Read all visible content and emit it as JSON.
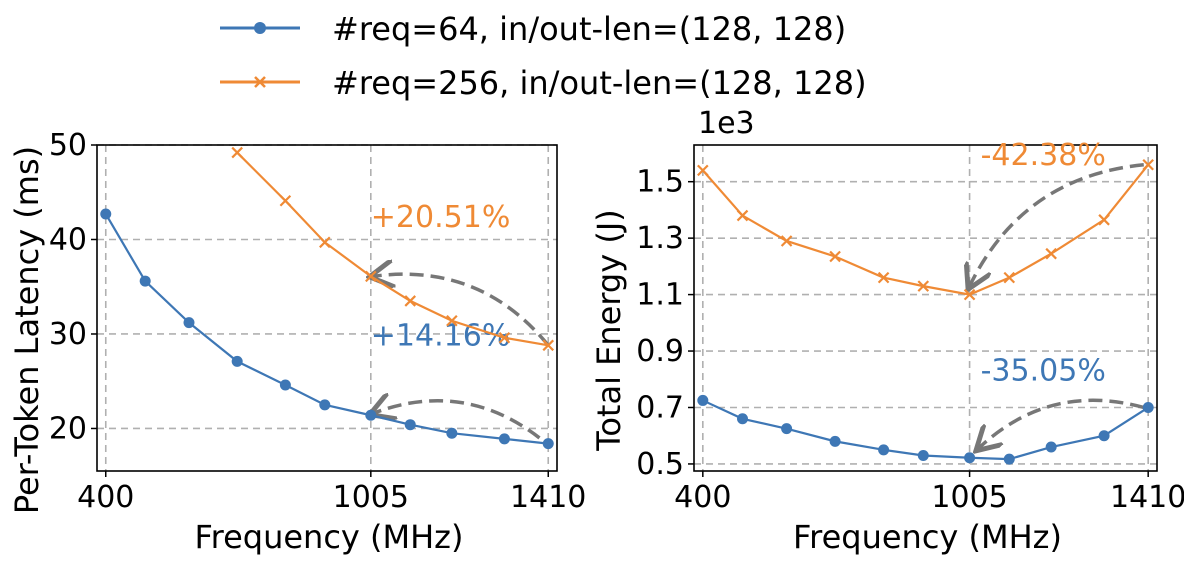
{
  "legend": {
    "items": [
      {
        "label": "#req=64, in/out-len=(128, 128)",
        "color": "#3e77b5",
        "marker": "circle"
      },
      {
        "label": "#req=256, in/out-len=(128, 128)",
        "color": "#ef8a35",
        "marker": "x"
      }
    ]
  },
  "chart_data": [
    {
      "type": "line",
      "xlabel": "Frequency (MHz)",
      "ylabel": "Per-Token Latency (ms)",
      "xlim": [
        380,
        1430
      ],
      "ylim": [
        15.5,
        50
      ],
      "xticks": [
        400,
        1005,
        1410
      ],
      "yticks": [
        20,
        30,
        40,
        50
      ],
      "grid": true,
      "series": [
        {
          "name": "#req=64, in/out-len=(128, 128)",
          "color": "#3e77b5",
          "marker": "circle",
          "x": [
            400,
            490,
            590,
            700,
            810,
            900,
            1005,
            1095,
            1190,
            1310,
            1410
          ],
          "y": [
            42.7,
            35.6,
            31.2,
            27.1,
            24.6,
            22.5,
            21.4,
            20.4,
            19.5,
            18.9,
            18.4
          ]
        },
        {
          "name": "#req=256, in/out-len=(128, 128)",
          "color": "#ef8a35",
          "marker": "x",
          "x": [
            700,
            810,
            900,
            1005,
            1095,
            1190,
            1310,
            1410
          ],
          "y": [
            49.2,
            44.1,
            39.7,
            36.1,
            33.5,
            31.4,
            29.6,
            28.8
          ]
        }
      ],
      "annotations": [
        {
          "text": "+20.51%",
          "color": "#ef8a35",
          "from": [
            1410,
            28.8
          ],
          "to": [
            1010,
            36.1
          ],
          "label_at": [
            1005,
            41.3
          ]
        },
        {
          "text": "+14.16%",
          "color": "#3e77b5",
          "from": [
            1390,
            19.0
          ],
          "to": [
            1010,
            21.6
          ],
          "label_at": [
            1005,
            28.8
          ]
        }
      ]
    },
    {
      "type": "line",
      "xlabel": "Frequency (MHz)",
      "ylabel": "Total Energy (J)",
      "multiplier": "1e3",
      "xlim": [
        380,
        1430
      ],
      "ylim": [
        0.475,
        1.63
      ],
      "xticks": [
        400,
        1005,
        1410
      ],
      "yticks": [
        0.5,
        0.7,
        0.9,
        1.1,
        1.3,
        1.5
      ],
      "ytick_labels": [
        "0.5",
        "0.7",
        "0.9",
        "1.1",
        "1.3",
        "1.5"
      ],
      "grid": true,
      "series": [
        {
          "name": "#req=64, in/out-len=(128, 128)",
          "color": "#3e77b5",
          "marker": "circle",
          "x": [
            400,
            490,
            590,
            700,
            810,
            900,
            1005,
            1095,
            1190,
            1310,
            1410
          ],
          "y": [
            0.725,
            0.66,
            0.625,
            0.58,
            0.55,
            0.53,
            0.522,
            0.517,
            0.56,
            0.6,
            0.7
          ]
        },
        {
          "name": "#req=256, in/out-len=(128, 128)",
          "color": "#ef8a35",
          "marker": "x",
          "x": [
            400,
            490,
            590,
            700,
            810,
            900,
            1005,
            1095,
            1190,
            1310,
            1410
          ],
          "y": [
            1.54,
            1.38,
            1.29,
            1.235,
            1.16,
            1.13,
            1.1,
            1.16,
            1.245,
            1.365,
            1.56
          ]
        }
      ],
      "annotations": [
        {
          "text": "-42.38%",
          "color": "#ef8a35",
          "from": [
            1400,
            1.56
          ],
          "to": [
            1005,
            1.13
          ],
          "label_at": [
            1030,
            1.56
          ]
        },
        {
          "text": "-35.05%",
          "color": "#3e77b5",
          "from": [
            1400,
            0.7
          ],
          "to": [
            1025,
            0.555
          ],
          "label_at": [
            1030,
            0.795
          ]
        }
      ]
    }
  ]
}
